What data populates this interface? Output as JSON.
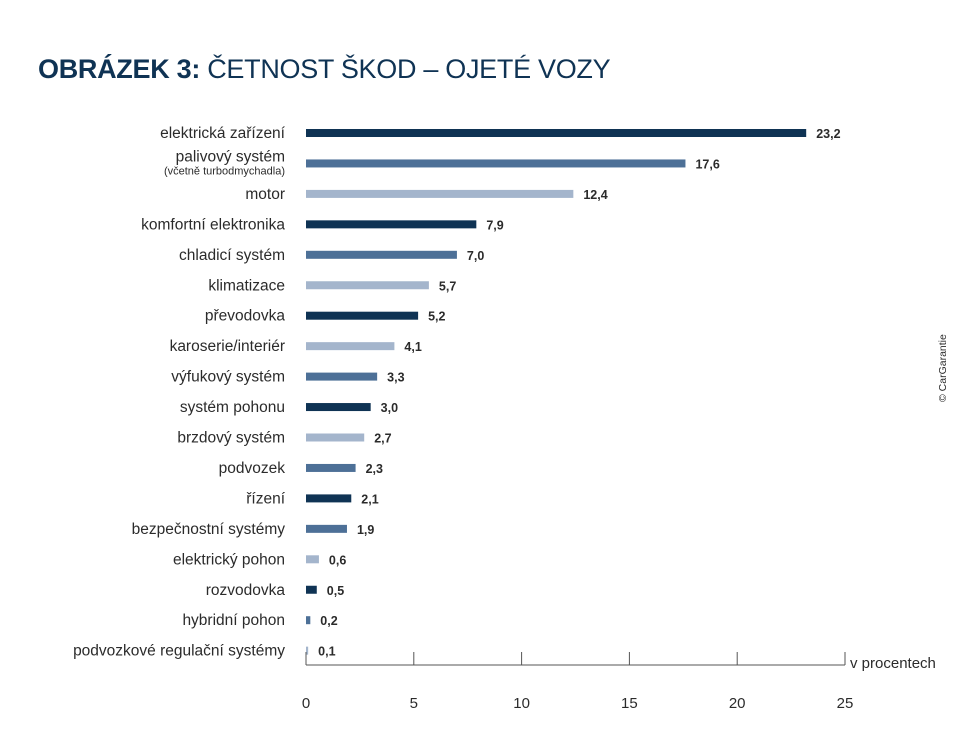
{
  "title": {
    "bold": "OBRÁZEK 3:",
    "rest": "ČETNOST ŠKOD – OJETÉ VOZY"
  },
  "copyright": "© CarGarantie",
  "colors": {
    "dark": "#0f3354",
    "mid": "#4d7097",
    "light": "#a4b5cc",
    "axis": "#555555",
    "text": "#2b2b2b"
  },
  "chart_data": {
    "type": "bar",
    "orientation": "horizontal",
    "title": "OBRÁZEK 3: ČETNOST ŠKOD – OJETÉ VOZY",
    "xlabel": "v procentech",
    "ylabel": "",
    "xlim": [
      0,
      25
    ],
    "xticks": [
      0,
      5,
      10,
      15,
      20,
      25
    ],
    "grid": false,
    "categories": [
      {
        "label": "elektrická zařízení",
        "sub": "",
        "value": 23.2,
        "value_label": "23,2",
        "shade": "dark"
      },
      {
        "label": "palivový systém",
        "sub": "(včetně turbodmychadla)",
        "value": 17.6,
        "value_label": "17,6",
        "shade": "mid"
      },
      {
        "label": "motor",
        "sub": "",
        "value": 12.4,
        "value_label": "12,4",
        "shade": "light"
      },
      {
        "label": "komfortní elektronika",
        "sub": "",
        "value": 7.9,
        "value_label": "7,9",
        "shade": "dark"
      },
      {
        "label": "chladicí systém",
        "sub": "",
        "value": 7.0,
        "value_label": "7,0",
        "shade": "mid"
      },
      {
        "label": "klimatizace",
        "sub": "",
        "value": 5.7,
        "value_label": "5,7",
        "shade": "light"
      },
      {
        "label": "převodovka",
        "sub": "",
        "value": 5.2,
        "value_label": "5,2",
        "shade": "dark"
      },
      {
        "label": "karoserie/interiér",
        "sub": "",
        "value": 4.1,
        "value_label": "4,1",
        "shade": "light"
      },
      {
        "label": "výfukový systém",
        "sub": "",
        "value": 3.3,
        "value_label": "3,3",
        "shade": "mid"
      },
      {
        "label": "systém pohonu",
        "sub": "",
        "value": 3.0,
        "value_label": "3,0",
        "shade": "dark"
      },
      {
        "label": "brzdový systém",
        "sub": "",
        "value": 2.7,
        "value_label": "2,7",
        "shade": "light"
      },
      {
        "label": "podvozek",
        "sub": "",
        "value": 2.3,
        "value_label": "2,3",
        "shade": "mid"
      },
      {
        "label": "řízení",
        "sub": "",
        "value": 2.1,
        "value_label": "2,1",
        "shade": "dark"
      },
      {
        "label": "bezpečnostní systémy",
        "sub": "",
        "value": 1.9,
        "value_label": "1,9",
        "shade": "mid"
      },
      {
        "label": "elektrický pohon",
        "sub": "",
        "value": 0.6,
        "value_label": "0,6",
        "shade": "light"
      },
      {
        "label": "rozvodovka",
        "sub": "",
        "value": 0.5,
        "value_label": "0,5",
        "shade": "dark"
      },
      {
        "label": "hybridní pohon",
        "sub": "",
        "value": 0.2,
        "value_label": "0,2",
        "shade": "mid"
      },
      {
        "label": "podvozkové regulační systémy",
        "sub": "",
        "value": 0.1,
        "value_label": "0,1",
        "shade": "light"
      }
    ]
  }
}
